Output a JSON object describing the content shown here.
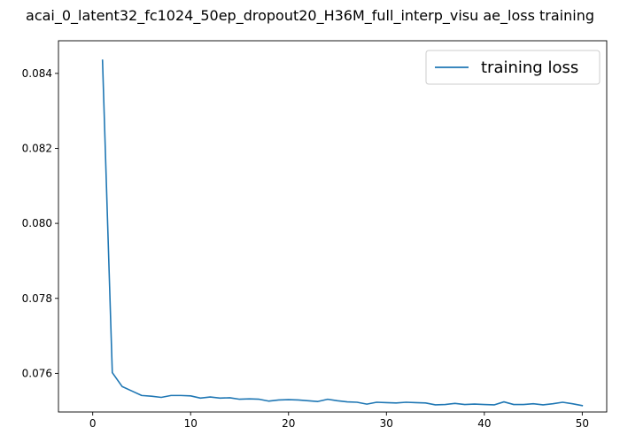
{
  "chart_data": {
    "type": "line",
    "title": "acai_0_latent32_fc1024_50ep_dropout20_H36M_full_interp_visu ae_loss training",
    "xlabel": "",
    "ylabel": "",
    "xlim": [
      -3.5,
      52.5
    ],
    "ylim": [
      0.07497,
      0.08487
    ],
    "xticks": [
      0,
      10,
      20,
      30,
      40,
      50
    ],
    "xtick_labels": [
      "0",
      "10",
      "20",
      "30",
      "40",
      "50"
    ],
    "yticks": [
      0.076,
      0.078,
      0.08,
      0.082,
      0.084
    ],
    "ytick_labels": [
      "0.076",
      "0.078",
      "0.080",
      "0.082",
      "0.084"
    ],
    "grid": false,
    "legend_position": "top-right",
    "series_color": "#1f77b4",
    "series": [
      {
        "name": "training loss",
        "x": [
          1,
          2,
          3,
          4,
          5,
          6,
          7,
          8,
          9,
          10,
          11,
          12,
          13,
          14,
          15,
          16,
          17,
          18,
          19,
          20,
          21,
          22,
          23,
          24,
          25,
          26,
          27,
          28,
          29,
          30,
          31,
          32,
          33,
          34,
          35,
          36,
          37,
          38,
          39,
          40,
          41,
          42,
          43,
          44,
          45,
          46,
          47,
          48,
          49,
          50
        ],
        "values": [
          0.08435,
          0.07602,
          0.07565,
          0.07553,
          0.07541,
          0.07539,
          0.07536,
          0.07541,
          0.07541,
          0.0754,
          0.07534,
          0.07537,
          0.07534,
          0.07535,
          0.07531,
          0.07532,
          0.07531,
          0.07526,
          0.07529,
          0.0753,
          0.07529,
          0.07527,
          0.07525,
          0.07531,
          0.07527,
          0.07524,
          0.07523,
          0.07518,
          0.07523,
          0.07522,
          0.07521,
          0.07523,
          0.07522,
          0.07521,
          0.07516,
          0.07517,
          0.0752,
          0.07517,
          0.07518,
          0.07517,
          0.07516,
          0.07524,
          0.07517,
          0.07517,
          0.07519,
          0.07516,
          0.07519,
          0.07523,
          0.07519,
          0.07514
        ]
      }
    ]
  }
}
